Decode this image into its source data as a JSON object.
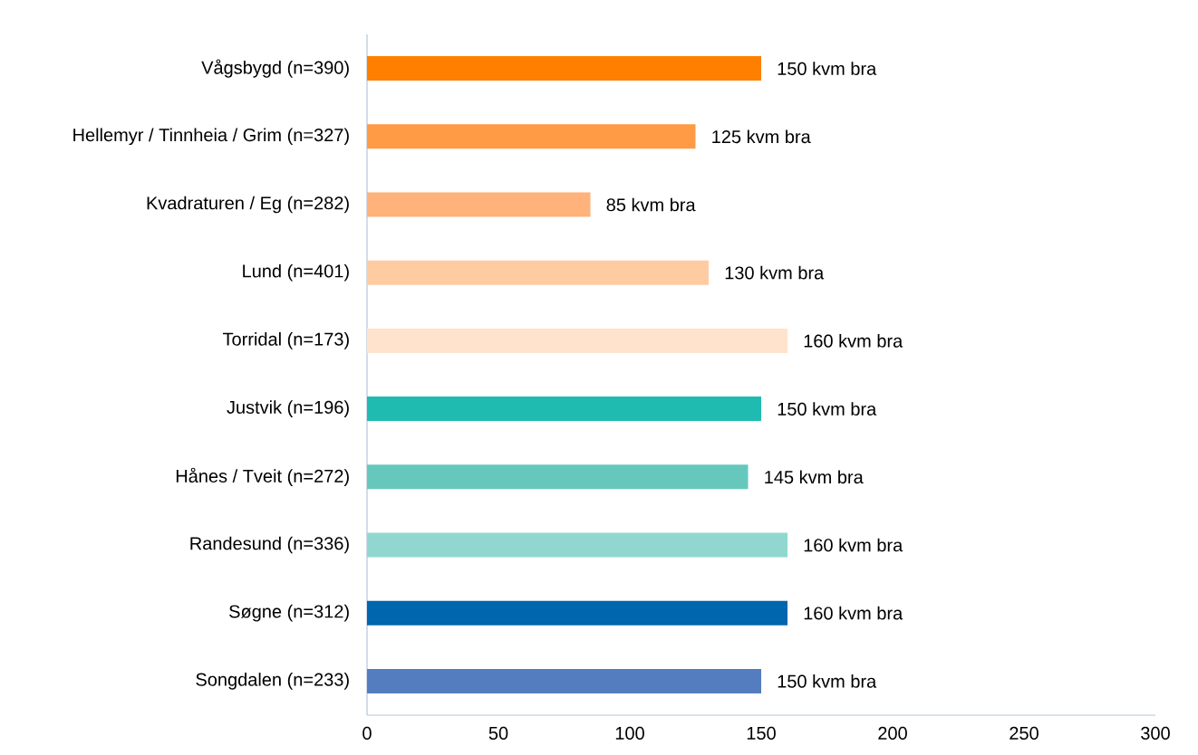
{
  "chart_data": {
    "type": "bar",
    "orientation": "horizontal",
    "categories": [
      "Vågsbygd (n=390)",
      "Hellemyr / Tinnheia / Grim (n=327)",
      "Kvadraturen / Eg (n=282)",
      "Lund (n=401)",
      "Torridal (n=173)",
      "Justvik (n=196)",
      "Hånes / Tveit (n=272)",
      "Randesund (n=336)",
      "Søgne (n=312)",
      "Songdalen (n=233)"
    ],
    "values": [
      150,
      125,
      85,
      130,
      160,
      150,
      145,
      160,
      160,
      150
    ],
    "value_labels": [
      "150 kvm bra",
      "125 kvm bra",
      "85 kvm bra",
      "130 kvm bra",
      "160 kvm bra",
      "150 kvm bra",
      "145 kvm bra",
      "160 kvm bra",
      "160 kvm bra",
      "150 kvm bra"
    ],
    "colors": [
      "#ff7f00",
      "#ff9a45",
      "#ffb27a",
      "#ffcba1",
      "#ffe3cc",
      "#20bbb0",
      "#66c8bd",
      "#90d8cf",
      "#0066ad",
      "#547dc0"
    ],
    "xlim": [
      0,
      300
    ],
    "xticks": [
      0,
      50,
      100,
      150,
      200,
      250,
      300
    ]
  }
}
